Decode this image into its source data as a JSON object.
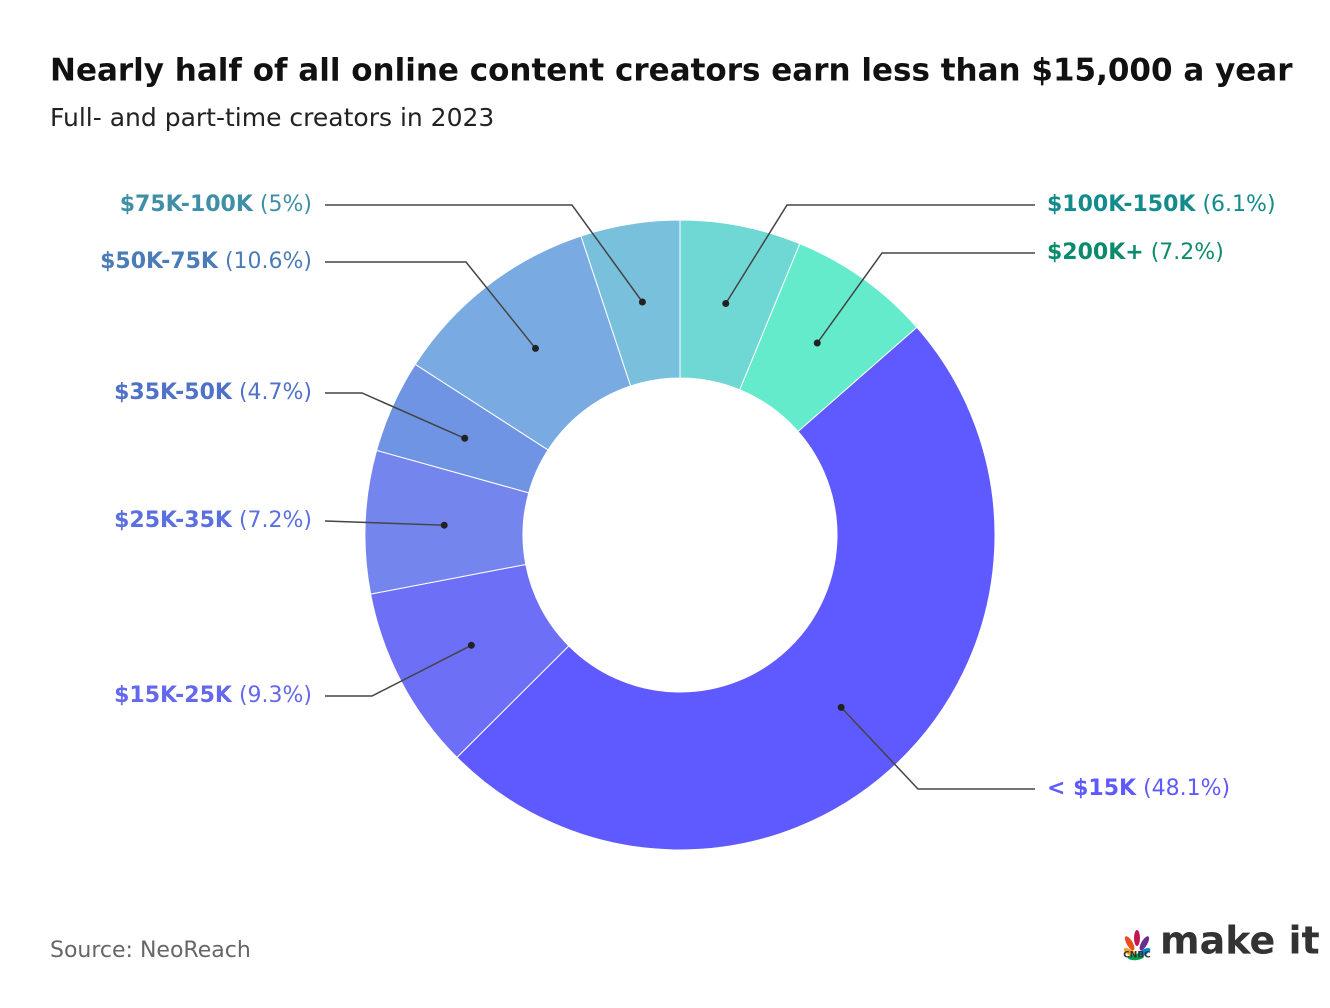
{
  "chart_data": {
    "type": "donut",
    "title": "Nearly half of all online content creators earn less than $15,000 a year",
    "subtitle": "Full- and part-time creators in 2023",
    "source": "Source: NeoReach",
    "brand": {
      "network": "CNBC",
      "name": "make it"
    },
    "categories": [
      "$100K-150K",
      "$200K+",
      "< $15K",
      "$15K-25K",
      "$25K-35K",
      "$35K-50K",
      "$50K-75K",
      "$75K-100K"
    ],
    "values": [
      6.1,
      7.2,
      48.1,
      9.3,
      7.2,
      4.7,
      10.6,
      5
    ],
    "value_labels": [
      "(6.1%)",
      "(7.2%)",
      "(48.1%)",
      "(9.3%)",
      "(7.2%)",
      "(4.7%)",
      "(10.6%)",
      "(5%)"
    ],
    "colors": [
      "#70d8d4",
      "#63ebcb",
      "#5f5aff",
      "#6e6ff7",
      "#7585ee",
      "#6f94e4",
      "#7aaae2",
      "#79c0dc"
    ],
    "label_colors": [
      "#138b8c",
      "#0c8a6c",
      "#5f5aff",
      "#6468ec",
      "#5a6fe0",
      "#4f72c8",
      "#4a7cb8",
      "#3f8fa6"
    ]
  }
}
